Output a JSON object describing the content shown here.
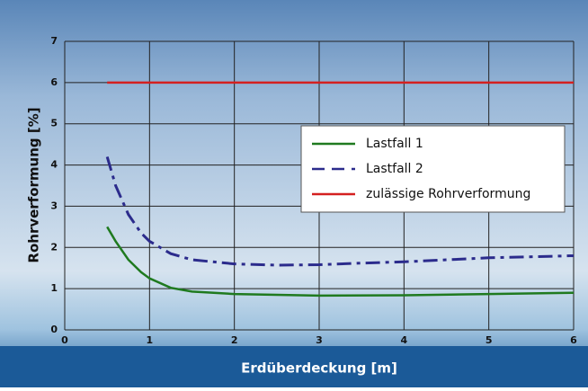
{
  "chart_data": {
    "type": "line",
    "xlabel": "Erdüberdeckung [m]",
    "ylabel": "Rohrverformung [%]",
    "xlim": [
      0,
      6
    ],
    "ylim": [
      0,
      7
    ],
    "xticks": [
      0,
      1,
      2,
      3,
      4,
      5,
      6
    ],
    "yticks": [
      0,
      1,
      2,
      3,
      4,
      5,
      6,
      7
    ],
    "grid": true,
    "legend": "right",
    "series": [
      {
        "name": "Lastfall 1",
        "color": "#1f7a1f",
        "style": "solid",
        "x": [
          0.5,
          0.6,
          0.75,
          0.9,
          1,
          1.25,
          1.5,
          2,
          2.5,
          3,
          4,
          5,
          6
        ],
        "values": [
          2.5,
          2.15,
          1.7,
          1.4,
          1.25,
          1.02,
          0.93,
          0.87,
          0.85,
          0.83,
          0.84,
          0.87,
          0.9
        ]
      },
      {
        "name": "Lastfall 2",
        "color": "#2b2b8c",
        "style": "dashed",
        "x": [
          0.5,
          0.6,
          0.75,
          0.9,
          1,
          1.25,
          1.5,
          2,
          2.5,
          3,
          3.5,
          4,
          5,
          6
        ],
        "values": [
          4.2,
          3.5,
          2.8,
          2.35,
          2.15,
          1.85,
          1.7,
          1.6,
          1.57,
          1.58,
          1.62,
          1.65,
          1.75,
          1.8
        ]
      },
      {
        "name": "zulässige Rohrverformung",
        "color": "#d42020",
        "style": "solid",
        "x": [
          0.5,
          6
        ],
        "values": [
          6,
          6
        ]
      }
    ]
  }
}
